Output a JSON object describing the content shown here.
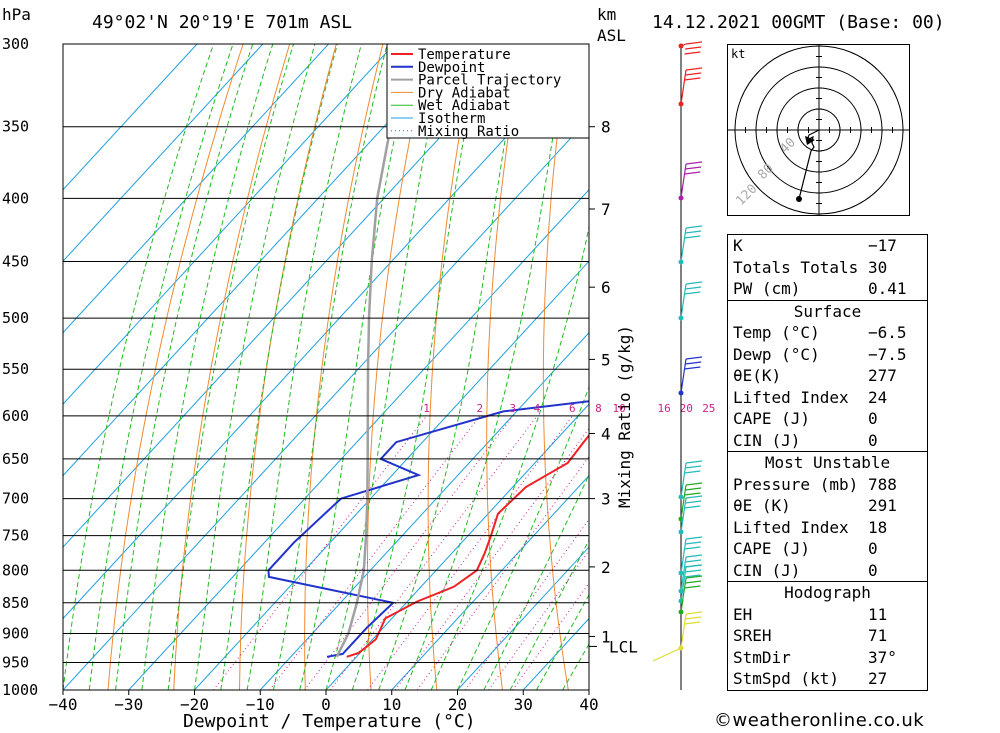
{
  "header": {
    "pressure_unit": "hPa",
    "location": "49°02'N  20°19'E  701m  ASL",
    "height_unit": "km",
    "height_unit_sub": "ASL",
    "datetime": "14.12.2021  00GMT  (Base: 00)"
  },
  "chart_data": {
    "type": "line",
    "title": "49°02'N  20°19'E  701m  ASL",
    "xlabel": "Dewpoint / Temperature (°C)",
    "ylabel": "hPa",
    "right_axis_label": "Mixing Ratio (g/kg)",
    "xlim": [
      -40,
      40
    ],
    "ylim": [
      1000,
      300
    ],
    "x_ticks": [
      "−40",
      "−30",
      "−20",
      "−10",
      "0",
      "10",
      "20",
      "30",
      "40"
    ],
    "x_tick_values": [
      -40,
      -30,
      -20,
      -10,
      0,
      10,
      20,
      30,
      40
    ],
    "pressure_levels": [
      300,
      350,
      400,
      450,
      500,
      550,
      600,
      650,
      700,
      750,
      800,
      850,
      900,
      950,
      1000
    ],
    "height_ticks": [
      {
        "label": "8",
        "p": 350
      },
      {
        "label": "7",
        "p": 408
      },
      {
        "label": "6",
        "p": 472
      },
      {
        "label": "5",
        "p": 540
      },
      {
        "label": "4",
        "p": 620
      },
      {
        "label": "3",
        "p": 700
      },
      {
        "label": "2",
        "p": 795
      },
      {
        "label": "1",
        "p": 905
      }
    ],
    "lcl": {
      "label": "LCL",
      "p": 922
    },
    "mixing_ratio_labels": [
      "1",
      "2",
      "3",
      "4",
      "6",
      "8",
      "10",
      "16",
      "20",
      "25"
    ],
    "mixing_ratio_values": [
      1,
      2,
      3,
      4,
      6,
      8,
      10,
      16,
      20,
      25
    ],
    "legend": [
      "Temperature",
      "Dewpoint",
      "Parcel Trajectory",
      "Dry Adiabat",
      "Wet Adiabat",
      "Isotherm",
      "Mixing Ratio"
    ],
    "legend_position": "top-right",
    "series": [
      {
        "name": "Temperature",
        "color": "#ee2222",
        "points": [
          [
            -1.5,
            940
          ],
          [
            -0.2,
            933
          ],
          [
            0.5,
            910
          ],
          [
            -1.0,
            875
          ],
          [
            1.5,
            848
          ],
          [
            5.0,
            825
          ],
          [
            6.2,
            800
          ],
          [
            5.0,
            775
          ],
          [
            3.5,
            750
          ],
          [
            1.5,
            720
          ],
          [
            2.0,
            685
          ],
          [
            5.0,
            655
          ],
          [
            4.5,
            630
          ],
          [
            4.0,
            600
          ],
          [
            3.0,
            570
          ],
          [
            1.0,
            545
          ],
          [
            -1.0,
            510
          ],
          [
            -3.5,
            475
          ],
          [
            -6.5,
            440
          ],
          [
            -9.5,
            405
          ],
          [
            -12.5,
            375
          ],
          [
            -14.5,
            352
          ],
          [
            -17.0,
            328
          ],
          [
            -19.0,
            300
          ]
        ]
      },
      {
        "name": "Dewpoint",
        "color": "#2233cc",
        "points": [
          [
            -4.5,
            940
          ],
          [
            -2.5,
            935
          ],
          [
            -2.5,
            890
          ],
          [
            -2.0,
            850
          ],
          [
            -24.5,
            810
          ],
          [
            -25.5,
            800
          ],
          [
            -25.5,
            760
          ],
          [
            -24.5,
            700
          ],
          [
            -16.0,
            670
          ],
          [
            -24.0,
            650
          ],
          [
            -24.0,
            630
          ],
          [
            -12.0,
            595
          ],
          [
            9.0,
            575
          ],
          [
            -3.0,
            560
          ],
          [
            -5.0,
            520
          ],
          [
            -5.0,
            490
          ],
          [
            -7.5,
            460
          ],
          [
            -5.0,
            430
          ],
          [
            -7.5,
            400
          ],
          [
            1.0,
            385
          ],
          [
            3.0,
            360
          ],
          [
            1.5,
            345
          ],
          [
            -2.5,
            335
          ],
          [
            -5.0,
            300
          ]
        ]
      },
      {
        "name": "Parcel Trajectory",
        "color": "#a0a0a0",
        "points": [
          [
            -3.0,
            940
          ],
          [
            -4.5,
            900
          ],
          [
            -7.5,
            850
          ],
          [
            -11.0,
            800
          ],
          [
            -15.5,
            750
          ],
          [
            -20.5,
            700
          ],
          [
            -26.0,
            650
          ],
          [
            -32.0,
            600
          ],
          [
            -38.5,
            550
          ],
          [
            -45.5,
            500
          ],
          [
            -53.0,
            450
          ],
          [
            -61.0,
            400
          ],
          [
            -69.0,
            350
          ],
          [
            -76.0,
            300
          ]
        ]
      }
    ]
  },
  "hodograph": {
    "unit_label": "kt",
    "ring_labels": [
      "40",
      "80",
      "120"
    ]
  },
  "indices": {
    "rows": [
      {
        "label": "K",
        "value": "−17"
      },
      {
        "label": "Totals Totals",
        "value": "30"
      },
      {
        "label": "PW (cm)",
        "value": "0.41"
      }
    ],
    "surface": {
      "title": "Surface",
      "rows": [
        {
          "label": "Temp (°C)",
          "value": "−6.5"
        },
        {
          "label": "Dewp (°C)",
          "value": "−7.5"
        },
        {
          "label": "θE(K)",
          "value": "277"
        },
        {
          "label": "Lifted Index",
          "value": "24"
        },
        {
          "label": "CAPE (J)",
          "value": "0"
        },
        {
          "label": "CIN (J)",
          "value": "0"
        }
      ]
    },
    "most_unstable": {
      "title": "Most Unstable",
      "rows": [
        {
          "label": "Pressure (mb)",
          "value": "788"
        },
        {
          "label": "θE (K)",
          "value": "291"
        },
        {
          "label": "Lifted Index",
          "value": "18"
        },
        {
          "label": "CAPE (J)",
          "value": "0"
        },
        {
          "label": "CIN (J)",
          "value": "0"
        }
      ]
    },
    "hodograph": {
      "title": "Hodograph",
      "rows": [
        {
          "label": "EH",
          "value": "11"
        },
        {
          "label": "SREH",
          "value": "71"
        },
        {
          "label": "StmDir",
          "value": "37°"
        },
        {
          "label": "StmSpd (kt)",
          "value": "27"
        }
      ]
    }
  },
  "footer": {
    "copyright": "©weatheronline.co.uk"
  }
}
